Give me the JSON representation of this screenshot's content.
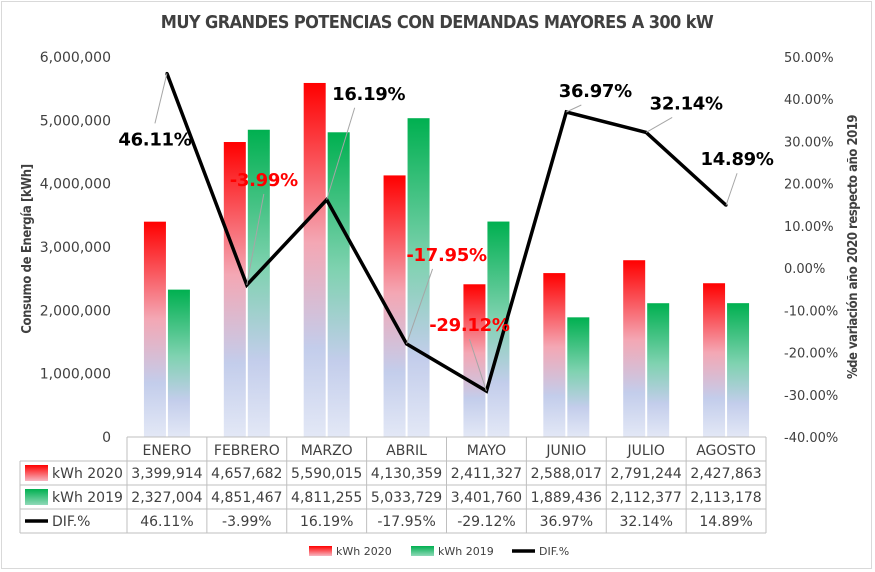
{
  "chart_data": {
    "type": "bar",
    "title": "MUY GRANDES POTENCIAS CON DEMANDAS MAYORES A 300 kW",
    "ylabel": "Consumo de Energía [kWh]",
    "y2label": "%de variación año 2020 respecto año 2019",
    "categories": [
      "ENERO",
      "FEBRERO",
      "MARZO",
      "ABRIL",
      "MAYO",
      "JUNIO",
      "JULIO",
      "AGOSTO"
    ],
    "ylim": [
      0,
      6000000
    ],
    "y2lim": [
      -40,
      50
    ],
    "yticks": [
      "0",
      "1,000,000",
      "2,000,000",
      "3,000,000",
      "4,000,000",
      "5,000,000",
      "6,000,000"
    ],
    "y2ticks": [
      "-40.00%",
      "-30.00%",
      "-20.00%",
      "-10.00%",
      "0.00%",
      "10.00%",
      "20.00%",
      "30.00%",
      "40.00%",
      "50.00%"
    ],
    "series": [
      {
        "name": "kWh 2020",
        "kind": "bar",
        "color": "#ff0000",
        "values": [
          3399914,
          4657682,
          5590015,
          4130359,
          2411327,
          2588017,
          2791244,
          2427863
        ],
        "labels": [
          "3,399,914",
          "4,657,682",
          "5,590,015",
          "4,130,359",
          "2,411,327",
          "2,588,017",
          "2,791,244",
          "2,427,863"
        ]
      },
      {
        "name": "kWh 2019",
        "kind": "bar",
        "color": "#00b050",
        "values": [
          2327004,
          4851467,
          4811255,
          5033729,
          3401760,
          1889436,
          2112377,
          2113178
        ],
        "labels": [
          "2,327,004",
          "4,851,467",
          "4,811,255",
          "5,033,729",
          "3,401,760",
          "1,889,436",
          "2,112,377",
          "2,113,178"
        ]
      },
      {
        "name": "DIF.%",
        "kind": "line",
        "axis": "secondary",
        "color": "#000000",
        "values": [
          46.11,
          -3.99,
          16.19,
          -17.95,
          -29.12,
          36.97,
          32.14,
          14.89
        ],
        "labels": [
          "46.11%",
          "-3.99%",
          "16.19%",
          "-17.95%",
          "-29.12%",
          "36.97%",
          "32.14%",
          "14.89%"
        ],
        "label_colors": [
          "#000000",
          "#ff0000",
          "#000000",
          "#ff0000",
          "#ff0000",
          "#000000",
          "#000000",
          "#000000"
        ]
      }
    ],
    "legend_position": "bottom",
    "data_table": true,
    "grid": false
  }
}
